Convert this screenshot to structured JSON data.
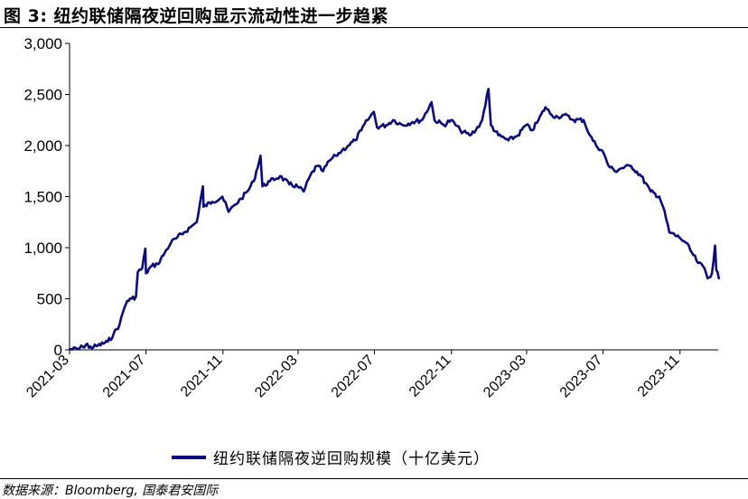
{
  "title": "图 3:  纽约联储隔夜逆回购显示流动性进一步趋紧",
  "source": "数据来源：Bloomberg, 国泰君安国际",
  "colors": {
    "series": "#0b0b7d",
    "axis": "#000000"
  },
  "chart_data": {
    "type": "line",
    "ylim": [
      0,
      3000
    ],
    "yticks": [
      "0",
      "500",
      "1,000",
      "1,500",
      "2,000",
      "2,500",
      "3,000"
    ],
    "xlim": [
      "2021-03",
      "2024-01"
    ],
    "xticks": [
      "2021-03",
      "2021-07",
      "2021-11",
      "2022-03",
      "2022-07",
      "2022-11",
      "2023-03",
      "2023-07",
      "2023-11"
    ],
    "grid": false,
    "legend_position": "bottom",
    "series": [
      {
        "name": "纽约联储隔夜逆回购规模（十亿美元）",
        "points": [
          [
            "2021-03-01",
            5
          ],
          [
            "2021-03-15",
            10
          ],
          [
            "2021-03-22",
            30
          ],
          [
            "2021-03-29",
            60
          ],
          [
            "2021-04-01",
            20
          ],
          [
            "2021-04-15",
            40
          ],
          [
            "2021-05-01",
            80
          ],
          [
            "2021-05-10",
            150
          ],
          [
            "2021-05-20",
            250
          ],
          [
            "2021-05-28",
            420
          ],
          [
            "2021-06-01",
            480
          ],
          [
            "2021-06-08",
            500
          ],
          [
            "2021-06-15",
            520
          ],
          [
            "2021-06-18",
            760
          ],
          [
            "2021-06-25",
            800
          ],
          [
            "2021-06-30",
            990
          ],
          [
            "2021-07-01",
            750
          ],
          [
            "2021-07-10",
            820
          ],
          [
            "2021-07-20",
            840
          ],
          [
            "2021-07-31",
            950
          ],
          [
            "2021-08-10",
            1050
          ],
          [
            "2021-08-20",
            1100
          ],
          [
            "2021-08-31",
            1150
          ],
          [
            "2021-09-10",
            1200
          ],
          [
            "2021-09-20",
            1250
          ],
          [
            "2021-09-30",
            1600
          ],
          [
            "2021-10-01",
            1400
          ],
          [
            "2021-10-15",
            1450
          ],
          [
            "2021-10-31",
            1500
          ],
          [
            "2021-11-10",
            1350
          ],
          [
            "2021-11-20",
            1420
          ],
          [
            "2021-11-30",
            1480
          ],
          [
            "2021-12-10",
            1550
          ],
          [
            "2021-12-20",
            1650
          ],
          [
            "2021-12-31",
            1900
          ],
          [
            "2022-01-03",
            1600
          ],
          [
            "2022-01-15",
            1650
          ],
          [
            "2022-01-31",
            1700
          ],
          [
            "2022-02-15",
            1620
          ],
          [
            "2022-02-28",
            1600
          ],
          [
            "2022-03-10",
            1550
          ],
          [
            "2022-03-20",
            1700
          ],
          [
            "2022-03-31",
            1800
          ],
          [
            "2022-04-10",
            1750
          ],
          [
            "2022-04-20",
            1850
          ],
          [
            "2022-04-30",
            1900
          ],
          [
            "2022-05-10",
            1950
          ],
          [
            "2022-05-20",
            2000
          ],
          [
            "2022-05-31",
            2050
          ],
          [
            "2022-06-10",
            2150
          ],
          [
            "2022-06-20",
            2250
          ],
          [
            "2022-06-30",
            2330
          ],
          [
            "2022-07-05",
            2180
          ],
          [
            "2022-07-20",
            2200
          ],
          [
            "2022-07-31",
            2250
          ],
          [
            "2022-08-15",
            2200
          ],
          [
            "2022-08-31",
            2230
          ],
          [
            "2022-09-15",
            2250
          ],
          [
            "2022-09-30",
            2425
          ],
          [
            "2022-10-05",
            2250
          ],
          [
            "2022-10-20",
            2200
          ],
          [
            "2022-10-31",
            2250
          ],
          [
            "2022-11-15",
            2150
          ],
          [
            "2022-11-30",
            2100
          ],
          [
            "2022-12-10",
            2150
          ],
          [
            "2022-12-20",
            2250
          ],
          [
            "2022-12-30",
            2554
          ],
          [
            "2023-01-03",
            2200
          ],
          [
            "2023-01-15",
            2100
          ],
          [
            "2023-01-31",
            2050
          ],
          [
            "2023-02-15",
            2100
          ],
          [
            "2023-02-28",
            2200
          ],
          [
            "2023-03-10",
            2150
          ],
          [
            "2023-03-20",
            2250
          ],
          [
            "2023-03-31",
            2375
          ],
          [
            "2023-04-10",
            2300
          ],
          [
            "2023-04-20",
            2280
          ],
          [
            "2023-04-30",
            2300
          ],
          [
            "2023-05-15",
            2250
          ],
          [
            "2023-05-31",
            2250
          ],
          [
            "2023-06-10",
            2100
          ],
          [
            "2023-06-20",
            2000
          ],
          [
            "2023-06-30",
            1950
          ],
          [
            "2023-07-10",
            1800
          ],
          [
            "2023-07-20",
            1750
          ],
          [
            "2023-07-31",
            1780
          ],
          [
            "2023-08-15",
            1800
          ],
          [
            "2023-08-31",
            1700
          ],
          [
            "2023-09-15",
            1550
          ],
          [
            "2023-09-29",
            1500
          ],
          [
            "2023-10-05",
            1400
          ],
          [
            "2023-10-15",
            1150
          ],
          [
            "2023-10-31",
            1100
          ],
          [
            "2023-11-10",
            1050
          ],
          [
            "2023-11-20",
            950
          ],
          [
            "2023-11-30",
            850
          ],
          [
            "2023-12-10",
            800
          ],
          [
            "2023-12-15",
            700
          ],
          [
            "2023-12-22",
            750
          ],
          [
            "2023-12-27",
            1020
          ],
          [
            "2023-12-29",
            780
          ],
          [
            "2024-01-02",
            700
          ]
        ]
      }
    ]
  }
}
